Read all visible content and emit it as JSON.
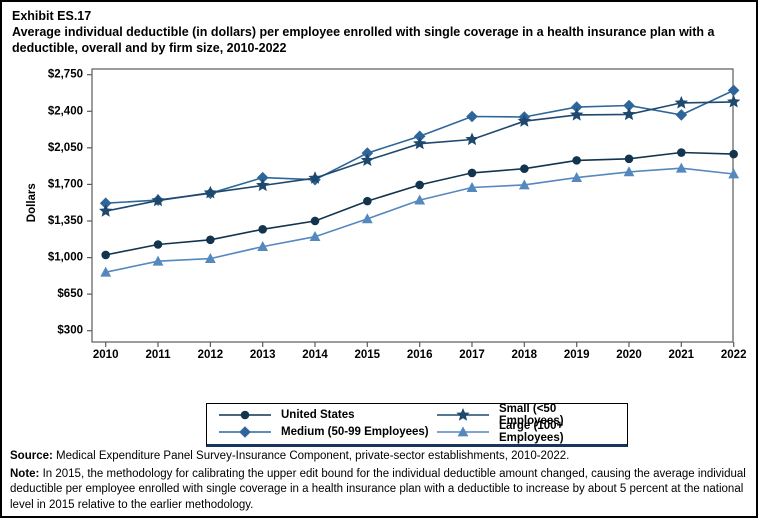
{
  "header": {
    "exhibit": "Exhibit ES.17",
    "title": "Average individual deductible (in dollars) per employee enrolled with single coverage in a health insurance plan with a deductible, overall and by firm size, 2010-2022"
  },
  "chart_data": {
    "type": "line",
    "ylabel": "Dollars",
    "grid": false,
    "legend_position": "bottom",
    "ylim": [
      300,
      2750
    ],
    "y_ticks": [
      {
        "value": 2750,
        "label": "$2,750"
      },
      {
        "value": 2400,
        "label": "$2,400"
      },
      {
        "value": 2050,
        "label": "$2,050"
      },
      {
        "value": 1700,
        "label": "$1,700"
      },
      {
        "value": 1350,
        "label": "$1,350"
      },
      {
        "value": 1000,
        "label": "$1,000"
      },
      {
        "value": 650,
        "label": "$650"
      },
      {
        "value": 300,
        "label": "$300"
      }
    ],
    "x": [
      "2010",
      "2011",
      "2012",
      "2013",
      "2014",
      "2015",
      "2016",
      "2017",
      "2018",
      "2019",
      "2020",
      "2021",
      "2022"
    ],
    "series": [
      {
        "name": "United States",
        "marker": "circle",
        "color": "#12344e",
        "values": [
          1025,
          1125,
          1170,
          1270,
          1350,
          1540,
          1695,
          1810,
          1850,
          1930,
          1945,
          2005,
          1990
        ]
      },
      {
        "name": "Medium (50-99 Employees)",
        "marker": "diamond",
        "color": "#2f6699",
        "values": [
          1520,
          1550,
          1615,
          1765,
          1745,
          2000,
          2160,
          2350,
          2345,
          2440,
          2455,
          2365,
          2600
        ]
      },
      {
        "name": "Small (<50 Employees)",
        "marker": "star",
        "color": "#1f486e",
        "values": [
          1445,
          1545,
          1620,
          1690,
          1760,
          1930,
          2090,
          2130,
          2305,
          2365,
          2370,
          2480,
          2490
        ]
      },
      {
        "name": "Large (100+ Employees)",
        "marker": "triangle",
        "color": "#5588be",
        "values": [
          860,
          965,
          990,
          1105,
          1200,
          1370,
          1550,
          1670,
          1695,
          1765,
          1820,
          1855,
          1800
        ]
      }
    ]
  },
  "legend": {
    "items": [
      {
        "series_index": 0,
        "label": "United States"
      },
      {
        "series_index": 2,
        "label": "Small (<50 Employees)"
      },
      {
        "series_index": 1,
        "label": "Medium (50-99 Employees)"
      },
      {
        "series_index": 3,
        "label": "Large (100+ Employees)"
      }
    ]
  },
  "footer": {
    "source_label": "Source:",
    "source_text": " Medical Expenditure Panel Survey-Insurance Component, private-sector establishments, 2010-2022.",
    "note_label": "Note:",
    "note_text": " In 2015, the methodology for calibrating the upper edit bound for the individual deductible amount changed, causing the average individual deductible per employee enrolled with single coverage in a health insurance plan with a deductible to increase by about 5 percent at the national level in 2015 relative to the earlier methodology."
  }
}
